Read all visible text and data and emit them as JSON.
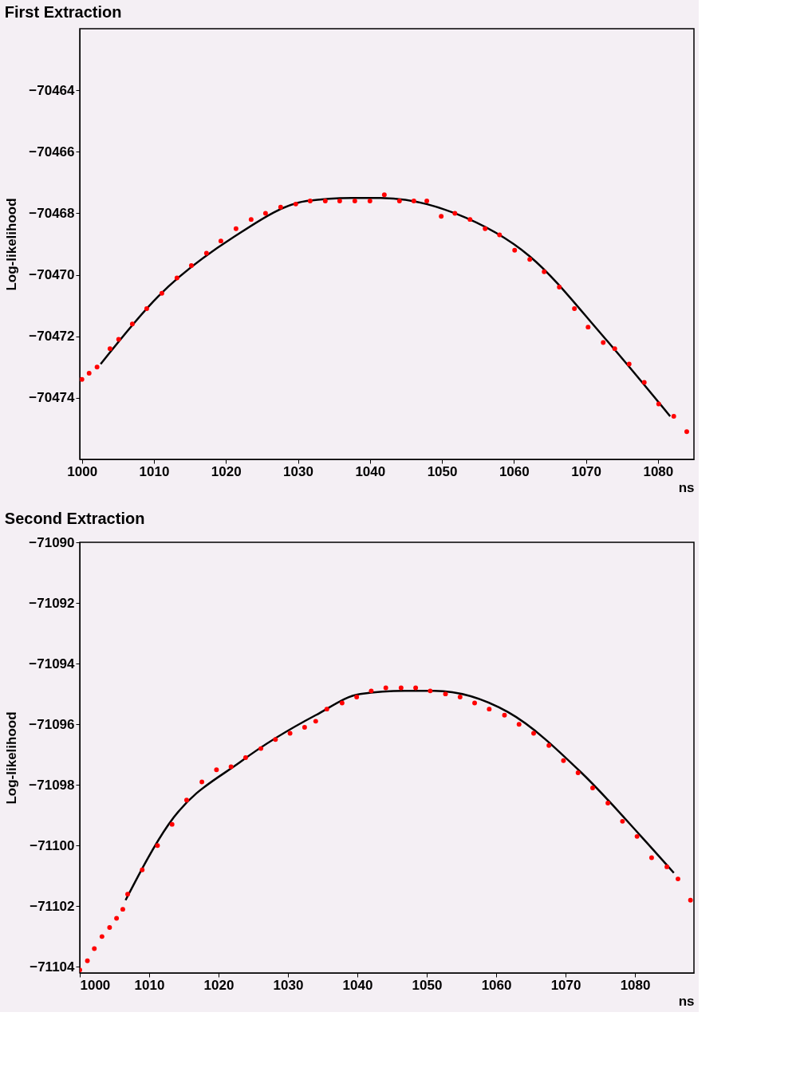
{
  "chart_data": [
    {
      "type": "scatter",
      "title": "First Extraction",
      "xlabel": "ns",
      "ylabel": "Log-likelihood",
      "xlim": [
        999.7,
        1085
      ],
      "ylim": [
        -70476,
        -70462
      ],
      "xticks": [
        1000,
        1010,
        1020,
        1030,
        1040,
        1050,
        1060,
        1070,
        1080
      ],
      "yticks": [
        -70474,
        -70472,
        -70470,
        -70468,
        -70466,
        -70464
      ],
      "grid": false,
      "series": [
        {
          "marker": "circle",
          "color": "#ff0000",
          "x": [
            1000,
            1001,
            1002.1,
            1003.9,
            1005.1,
            1007,
            1009,
            1011.1,
            1013.2,
            1015.2,
            1017.3,
            1019.3,
            1021.4,
            1023.5,
            1025.5,
            1027.6,
            1029.7,
            1031.7,
            1033.8,
            1035.8,
            1037.9,
            1040,
            1042,
            1044.1,
            1046.1,
            1047.9,
            1049.9,
            1051.8,
            1053.9,
            1056,
            1058,
            1060.1,
            1062.2,
            1064.2,
            1066.3,
            1068.4,
            1070.3,
            1072.4,
            1074,
            1076,
            1078.1,
            1080.1,
            1082.2,
            1084
          ],
          "values": [
            -70473.4,
            -70473.2,
            -70473.0,
            -70472.4,
            -70472.1,
            -70471.6,
            -70471.1,
            -70470.6,
            -70470.1,
            -70469.7,
            -70469.3,
            -70468.9,
            -70468.5,
            -70468.2,
            -70468.0,
            -70467.8,
            -70467.7,
            -70467.6,
            -70467.6,
            -70467.6,
            -70467.6,
            -70467.6,
            -70467.4,
            -70467.6,
            -70467.6,
            -70467.6,
            -70468.1,
            -70468.0,
            -70468.2,
            -70468.5,
            -70468.7,
            -70469.2,
            -70469.5,
            -70469.9,
            -70470.4,
            -70471.1,
            -70471.7,
            -70472.2,
            -70472.4,
            -70472.9,
            -70473.5,
            -70474.2,
            -70474.6,
            -70475.1
          ]
        },
        {
          "type": "line",
          "color": "#000000",
          "x": [
            1002.6,
            1010.6,
            1020.9,
            1031.2,
            1037.4,
            1041.5,
            1051.8,
            1062.2,
            1072.4,
            1081.7
          ],
          "values": [
            -70472.9,
            -70470.7,
            -70468.8,
            -70467.6,
            -70467.5,
            -70467.5,
            -70468.0,
            -70469.4,
            -70472.0,
            -70474.6
          ]
        }
      ]
    },
    {
      "type": "scatter",
      "title": "Second Extraction",
      "xlabel": "ns",
      "ylabel": "Log-likelihood",
      "xlim": [
        1000,
        1088.5
      ],
      "ylim": [
        -71104.2,
        -71090
      ],
      "xticks": [
        1000,
        1010,
        1020,
        1030,
        1040,
        1050,
        1060,
        1070,
        1080
      ],
      "yticks": [
        -71104,
        -71102,
        -71100,
        -71098,
        -71096,
        -71094,
        -71092,
        -71090
      ],
      "grid": false,
      "series": [
        {
          "marker": "circle",
          "color": "#ff0000",
          "x": [
            1000,
            1001.1,
            1002.1,
            1003.2,
            1004.3,
            1005.3,
            1006.2,
            1006.9,
            1009,
            1011.2,
            1013.3,
            1015.4,
            1017.6,
            1019.7,
            1021.8,
            1023.9,
            1026.1,
            1028.2,
            1030.3,
            1032.4,
            1034,
            1035.6,
            1037.8,
            1039.9,
            1042,
            1044.1,
            1046.3,
            1048.4,
            1050.5,
            1052.7,
            1054.8,
            1056.9,
            1059,
            1061.2,
            1063.3,
            1065.4,
            1067.6,
            1069.7,
            1071.8,
            1073.9,
            1076.1,
            1078.2,
            1080.3,
            1082.4,
            1084.6,
            1086.2,
            1088
          ],
          "values": [
            -71104.1,
            -71103.8,
            -71103.4,
            -71103.0,
            -71102.7,
            -71102.4,
            -71102.1,
            -71101.6,
            -71100.8,
            -71100.0,
            -71099.3,
            -71098.5,
            -71097.9,
            -71097.5,
            -71097.4,
            -71097.1,
            -71096.8,
            -71096.5,
            -71096.3,
            -71096.1,
            -71095.9,
            -71095.5,
            -71095.3,
            -71095.1,
            -71094.9,
            -71094.8,
            -71094.8,
            -71094.8,
            -71094.9,
            -71095.0,
            -71095.1,
            -71095.3,
            -71095.5,
            -71095.7,
            -71096.0,
            -71096.3,
            -71096.7,
            -71097.2,
            -71097.6,
            -71098.1,
            -71098.6,
            -71099.2,
            -71099.7,
            -71100.4,
            -71100.7,
            -71101.1,
            -71101.8
          ]
        },
        {
          "type": "line",
          "color": "#000000",
          "x": [
            1006.6,
            1012.8,
            1023.4,
            1034,
            1040.4,
            1046.8,
            1051.1,
            1061.7,
            1072.3,
            1080.9,
            1085.6
          ],
          "values": [
            -71101.8,
            -71099.3,
            -71097.2,
            -71095.7,
            -71095.0,
            -71094.9,
            -71094.9,
            -71095.6,
            -71097.6,
            -71099.7,
            -71100.9
          ]
        }
      ]
    }
  ]
}
